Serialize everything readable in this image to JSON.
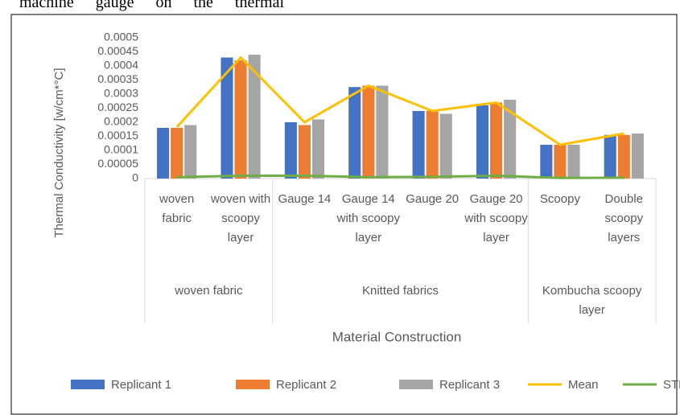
{
  "header_text": "machine gauge on the thermal",
  "chart_data": {
    "type": "bar",
    "ylabel": "Thermal Conductivity [w/cm*°C]",
    "xlabel": "Material Construction",
    "category_groups": [
      {
        "label": "woven fabric",
        "categories": [
          "woven fabric",
          "woven with scoopy layer"
        ]
      },
      {
        "label": "Knitted fabrics",
        "categories": [
          "Gauge 14",
          "Gauge 14 with scoopy layer",
          "Gauge 20",
          "Gauge 20 with scoopy layer"
        ]
      },
      {
        "label": "Kombucha scoopy layer",
        "categories": [
          "Scoopy",
          "Double scoopy layers"
        ]
      }
    ],
    "series": [
      {
        "name": "Replicant 1",
        "kind": "bar",
        "color": "#4472c4",
        "values": [
          0.00018,
          0.00043,
          0.0002,
          0.000325,
          0.00024,
          0.00026,
          0.00012,
          0.000155
        ]
      },
      {
        "name": "Replicant 2",
        "kind": "bar",
        "color": "#ed7d31",
        "values": [
          0.00018,
          0.00042,
          0.00019,
          0.00033,
          0.00024,
          0.00027,
          0.00012,
          0.000155
        ]
      },
      {
        "name": "Replicant 3",
        "kind": "bar",
        "color": "#a5a5a5",
        "values": [
          0.00019,
          0.00044,
          0.00021,
          0.00033,
          0.00023,
          0.00028,
          0.00012,
          0.00016
        ]
      },
      {
        "name": "Mean",
        "kind": "line",
        "color": "#ffc000",
        "values": [
          0.000183,
          0.00043,
          0.0002,
          0.00033,
          0.00024,
          0.00027,
          0.00012,
          0.00016
        ]
      },
      {
        "name": "STDEV",
        "kind": "line",
        "color": "#70ad47",
        "values": [
          5e-06,
          1e-05,
          1e-05,
          5e-06,
          6e-06,
          1e-05,
          2e-06,
          3e-06
        ]
      }
    ],
    "ylim": [
      0,
      0.0005
    ],
    "yticks": [
      0,
      5e-05,
      0.0001,
      0.00015,
      0.0002,
      0.00025,
      0.0003,
      0.00035,
      0.0004,
      0.00045,
      0.0005
    ]
  }
}
